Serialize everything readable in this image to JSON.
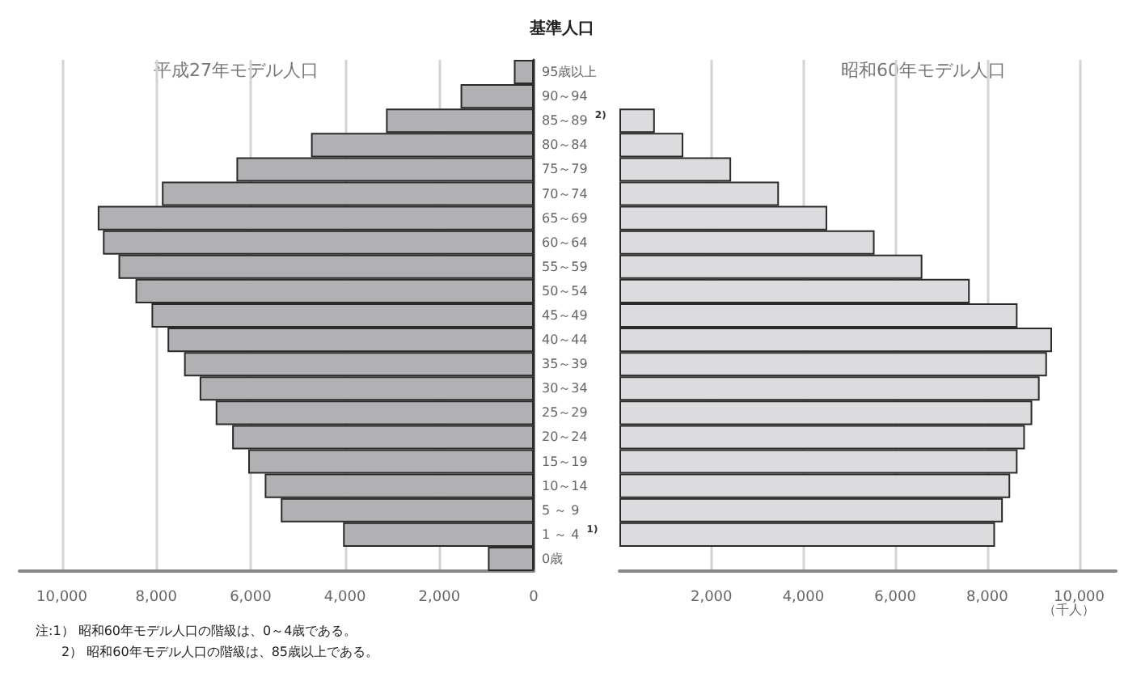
{
  "chart_data": [
    {
      "type": "bar",
      "orientation": "horizontal",
      "title": "基準人口",
      "subtitle": "平成27年モデル人口",
      "categories": [
        "95歳以上",
        "90～94",
        "85～89 $^{2)}$",
        "80～84",
        "75～79",
        "70～74",
        "65～69",
        "60～64",
        "55～59",
        "50～54",
        "45～49",
        "40～44",
        "35～39",
        "30～34",
        "25～29",
        "20～24",
        "15～19",
        "10～14",
        "5 ～ 9",
        "1 ～ 4 $^{1)}$",
        "0歳"
      ],
      "series": [
        {
          "color": "#b1b1b4",
          "values": [
            420,
            1550,
            3130,
            4720,
            6300,
            7880,
            9240,
            9130,
            8800,
            8440,
            8100,
            7760,
            7410,
            7080,
            6740,
            6390,
            6050,
            5700,
            5360,
            4040,
            970
          ]
        }
      ],
      "xlim": [
        10900,
        0
      ],
      "xticks": [
        {
          "value": 10000,
          "label": "10,000"
        },
        {
          "value": 8000,
          "label": "8,000"
        },
        {
          "value": 6000,
          "label": "6,000"
        },
        {
          "value": 4000,
          "label": "4,000"
        },
        {
          "value": 2000,
          "label": "2,000"
        },
        0
      ],
      "grid": "x",
      "annotations": [
        "注:1） 昭和60年モデル人口の階級は、0～4歳である。",
        "2） 昭和60年モデル人口の階級は、85歳以上である。"
      ]
    },
    {
      "type": "bar",
      "orientation": "horizontal",
      "subtitle": "昭和60年モデル人口",
      "xlabel": "（千人）",
      "categories": [
        null,
        null,
        null,
        null,
        null,
        null,
        null,
        null,
        null,
        null,
        null,
        null,
        null,
        null,
        null,
        null,
        null,
        null,
        null,
        null,
        null
      ],
      "series": [
        {
          "color": "#dcdcde",
          "values": [
            null,
            null,
            770,
            1390,
            2430,
            3470,
            4520,
            5550,
            6590,
            7620,
            8660,
            9410,
            9300,
            9140,
            8980,
            8820,
            8660,
            8500,
            8340,
            8170,
            null
          ]
        }
      ],
      "xlim": [
        0,
        10800
      ],
      "xticks": [
        {
          "value": 2000,
          "label": "2,000"
        },
        {
          "value": 4000,
          "label": "4,000"
        },
        {
          "value": 6000,
          "label": "6,000"
        },
        {
          "value": 8000,
          "label": "8,000"
        },
        {
          "value": 10000,
          "label": "10,000"
        }
      ],
      "grid": "x",
      "tick_labels": "x"
    }
  ]
}
